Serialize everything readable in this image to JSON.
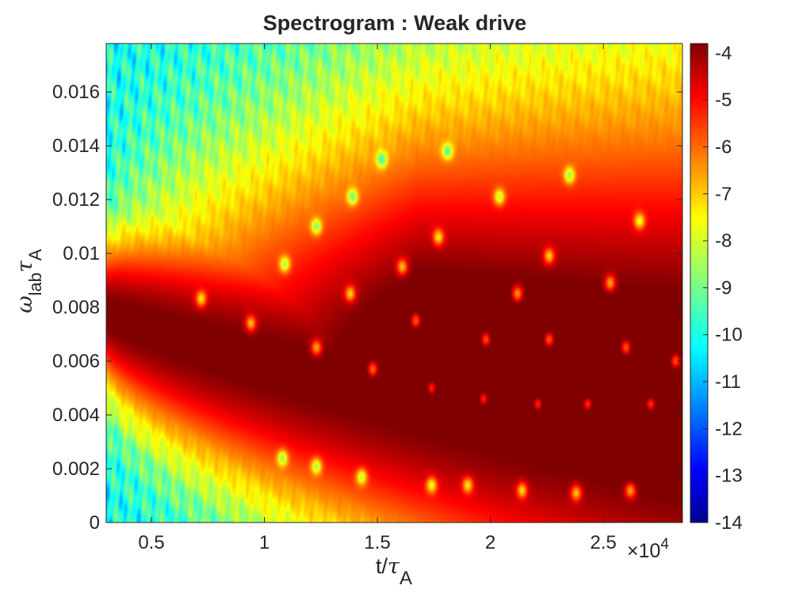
{
  "chart_data": {
    "type": "heatmap",
    "title": "Spectrogram : Weak drive",
    "xlabel": {
      "main": "t/",
      "sym": "τ",
      "sub": "A"
    },
    "ylabel": {
      "sym1": "ω",
      "sub1": "lab",
      "sym2": "τ",
      "sub2": "A"
    },
    "x_multiplier": {
      "prefix": "×10",
      "exponent": "4"
    },
    "xlim": [
      0.3,
      2.85
    ],
    "ylim": [
      0,
      0.0178
    ],
    "xticks": [
      0.5,
      1,
      1.5,
      2,
      2.5
    ],
    "xtick_labels": [
      "0.5",
      "1",
      "1.5",
      "2",
      "2.5"
    ],
    "yticks": [
      0,
      0.002,
      0.004,
      0.006,
      0.008,
      0.01,
      0.012,
      0.014,
      0.016
    ],
    "ytick_labels": [
      "0",
      "0.002",
      "0.004",
      "0.006",
      "0.008",
      "0.01",
      "0.012",
      "0.014",
      "0.016"
    ],
    "colorbar": {
      "colormap": "jet",
      "range": [
        -14,
        -3.8
      ],
      "ticks": [
        -4,
        -5,
        -6,
        -7,
        -8,
        -9,
        -10,
        -11,
        -12,
        -13,
        -14
      ],
      "tick_labels": [
        "-4",
        "-5",
        "-6",
        "-7",
        "-8",
        "-9",
        "-10",
        "-11",
        "-12",
        "-13",
        "-14"
      ]
    },
    "description_values": {
      "ridge_center_start": [
        0.3,
        0.0078
      ],
      "ridge_center_end": [
        2.85,
        0.0022
      ],
      "max_level": -4,
      "background_level": -10
    },
    "spots": [
      [
        0.72,
        0.0083
      ],
      [
        0.94,
        0.0074
      ],
      [
        1.09,
        0.0096
      ],
      [
        1.23,
        0.011
      ],
      [
        1.23,
        0.0065
      ],
      [
        1.38,
        0.0085
      ],
      [
        1.39,
        0.0121
      ],
      [
        1.48,
        0.0057
      ],
      [
        1.52,
        0.0135
      ],
      [
        1.61,
        0.0095
      ],
      [
        1.67,
        0.0075
      ],
      [
        1.74,
        0.005
      ],
      [
        1.77,
        0.0106
      ],
      [
        1.81,
        0.0138
      ],
      [
        1.98,
        0.0068
      ],
      [
        1.97,
        0.0046
      ],
      [
        2.04,
        0.0121
      ],
      [
        2.12,
        0.0085
      ],
      [
        2.21,
        0.0044
      ],
      [
        2.26,
        0.0099
      ],
      [
        2.26,
        0.0068
      ],
      [
        2.35,
        0.0129
      ],
      [
        2.43,
        0.0044
      ],
      [
        2.53,
        0.0089
      ],
      [
        2.6,
        0.0065
      ],
      [
        2.66,
        0.0112
      ],
      [
        2.71,
        0.0044
      ],
      [
        2.82,
        0.006
      ],
      [
        1.23,
        0.0021
      ],
      [
        1.43,
        0.0017
      ],
      [
        1.74,
        0.0014
      ],
      [
        1.9,
        0.0014
      ],
      [
        2.14,
        0.0012
      ],
      [
        2.38,
        0.0011
      ],
      [
        2.62,
        0.0012
      ],
      [
        1.08,
        0.0024
      ]
    ]
  }
}
